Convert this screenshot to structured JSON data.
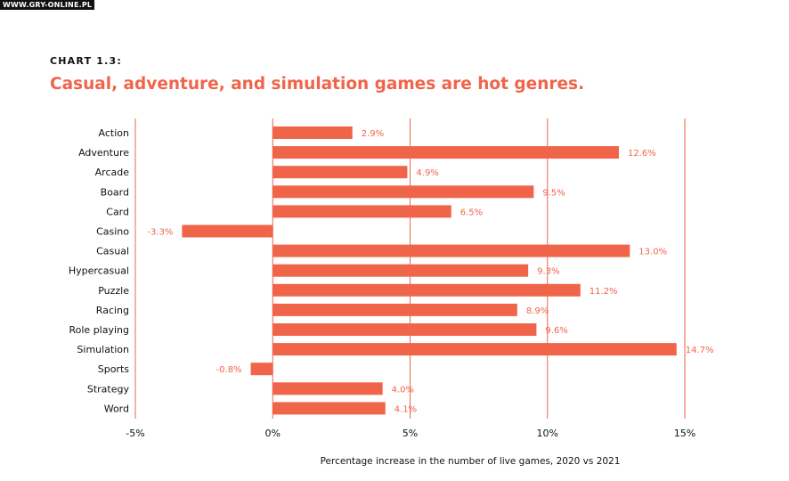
{
  "watermark": "WWW.GRY-ONLINE.PL",
  "chart_label": "CHART 1.3:",
  "chart_data": {
    "type": "bar",
    "orientation": "horizontal",
    "title": "Casual, adventure, and simulation games are hot genres.",
    "xlabel": "Percentage increase in the number of live games, 2020 vs 2021",
    "ylabel": "",
    "xlim": [
      -5,
      15
    ],
    "xticks": [
      -5,
      0,
      5,
      10,
      15
    ],
    "xtick_labels": [
      "-5%",
      "0%",
      "5%",
      "10%",
      "15%"
    ],
    "grid": true,
    "bar_color": "#f0654a",
    "categories": [
      "Action",
      "Adventure",
      "Arcade",
      "Board",
      "Card",
      "Casino",
      "Casual",
      "Hypercasual",
      "Puzzle",
      "Racing",
      "Role playing",
      "Simulation",
      "Sports",
      "Strategy",
      "Word"
    ],
    "values": [
      2.9,
      12.6,
      4.9,
      9.5,
      6.5,
      -3.3,
      13.0,
      9.3,
      11.2,
      8.9,
      9.6,
      14.7,
      -0.8,
      4.0,
      4.1
    ],
    "value_labels": [
      "2.9%",
      "12.6%",
      "4.9%",
      "9.5%",
      "6.5%",
      "-3.3%",
      "13.0%",
      "9.3%",
      "11.2%",
      "8.9%",
      "9.6%",
      "14.7%",
      "-0.8%",
      "4.0%",
      "4.1%"
    ]
  }
}
